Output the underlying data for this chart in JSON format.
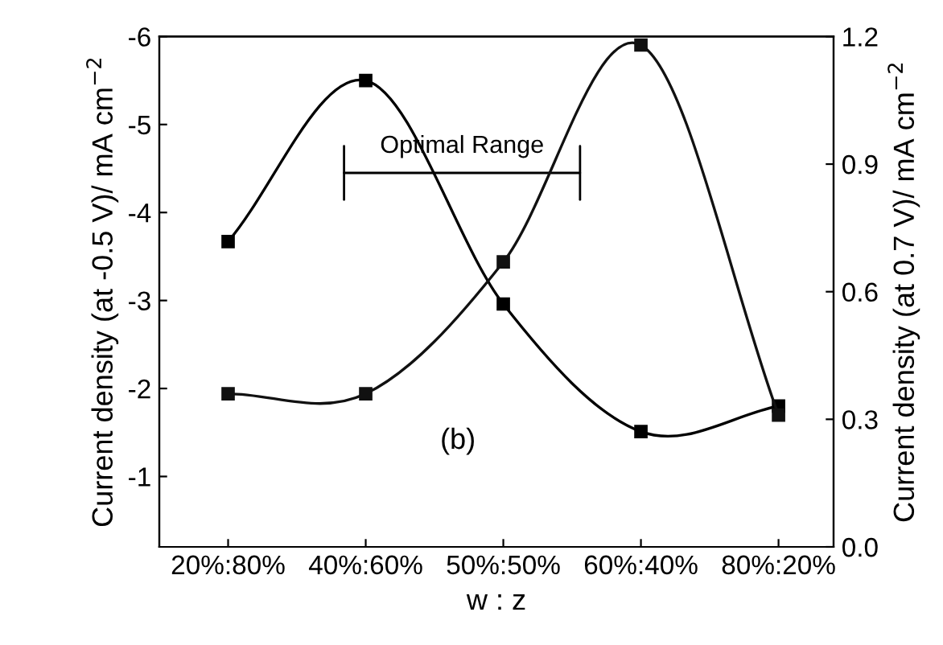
{
  "chart_data": {
    "type": "line",
    "xlabel": "w : z",
    "ylabel": "Current density (at -0.5 V)/ mA cm$^{−2}$",
    "y2label": "Current density (at 0.7 V)/ mA cm$^{−2}$",
    "categories": [
      "20%:80%",
      "40%:60%",
      "50%:50%",
      "60%:40%",
      "80%:20%"
    ],
    "series": [
      {
        "color": "#000000",
        "values": [
          -3.67,
          -5.5,
          -2.96,
          -1.51,
          -1.8
        ]
      },
      {
        "color": "#111111",
        "axis": "y2",
        "values": [
          0.36,
          0.36,
          0.67,
          1.18,
          0.31
        ]
      }
    ],
    "ylim": [
      -0.2,
      -6
    ],
    "yticks": [
      -1,
      -2,
      -3,
      -4,
      -5,
      -6
    ],
    "y2lim": [
      0,
      1.2
    ],
    "y2ticks": [
      {
        "value": 0,
        "label": "0.0"
      },
      0.3,
      0.6,
      0.9,
      1.2
    ],
    "marker": "square",
    "line_style": "solid",
    "grid": false,
    "legend": false,
    "annotations": [
      "Optimal Range",
      "(b)"
    ]
  }
}
